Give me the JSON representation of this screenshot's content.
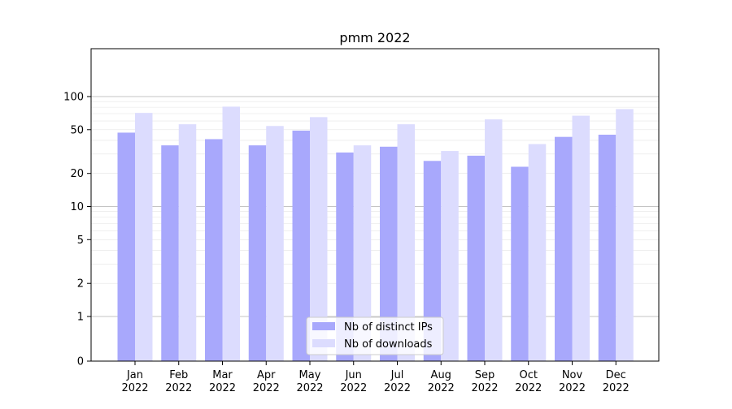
{
  "chart_data": {
    "type": "bar",
    "title": "pmm 2022",
    "xlabel": "",
    "ylabel": "",
    "yscale": "symlog",
    "ylim": [
      0,
      120
    ],
    "yticks": [
      0,
      1,
      2,
      5,
      10,
      20,
      50,
      100
    ],
    "grid": true,
    "legend_position": "bottom-center",
    "categories": [
      "Jan\n2022",
      "Feb\n2022",
      "Mar\n2022",
      "Apr\n2022",
      "May\n2022",
      "Jun\n2022",
      "Jul\n2022",
      "Aug\n2022",
      "Sep\n2022",
      "Oct\n2022",
      "Nov\n2022",
      "Dec\n2022"
    ],
    "series": [
      {
        "name": "Nb of distinct IPs",
        "color": "#a8a8fc",
        "values": [
          47,
          36,
          41,
          36,
          49,
          31,
          35,
          26,
          29,
          23,
          43,
          45
        ]
      },
      {
        "name": "Nb of downloads",
        "color": "#dcdcfe",
        "values": [
          71,
          56,
          81,
          54,
          65,
          36,
          56,
          32,
          62,
          37,
          67,
          77
        ]
      }
    ]
  }
}
